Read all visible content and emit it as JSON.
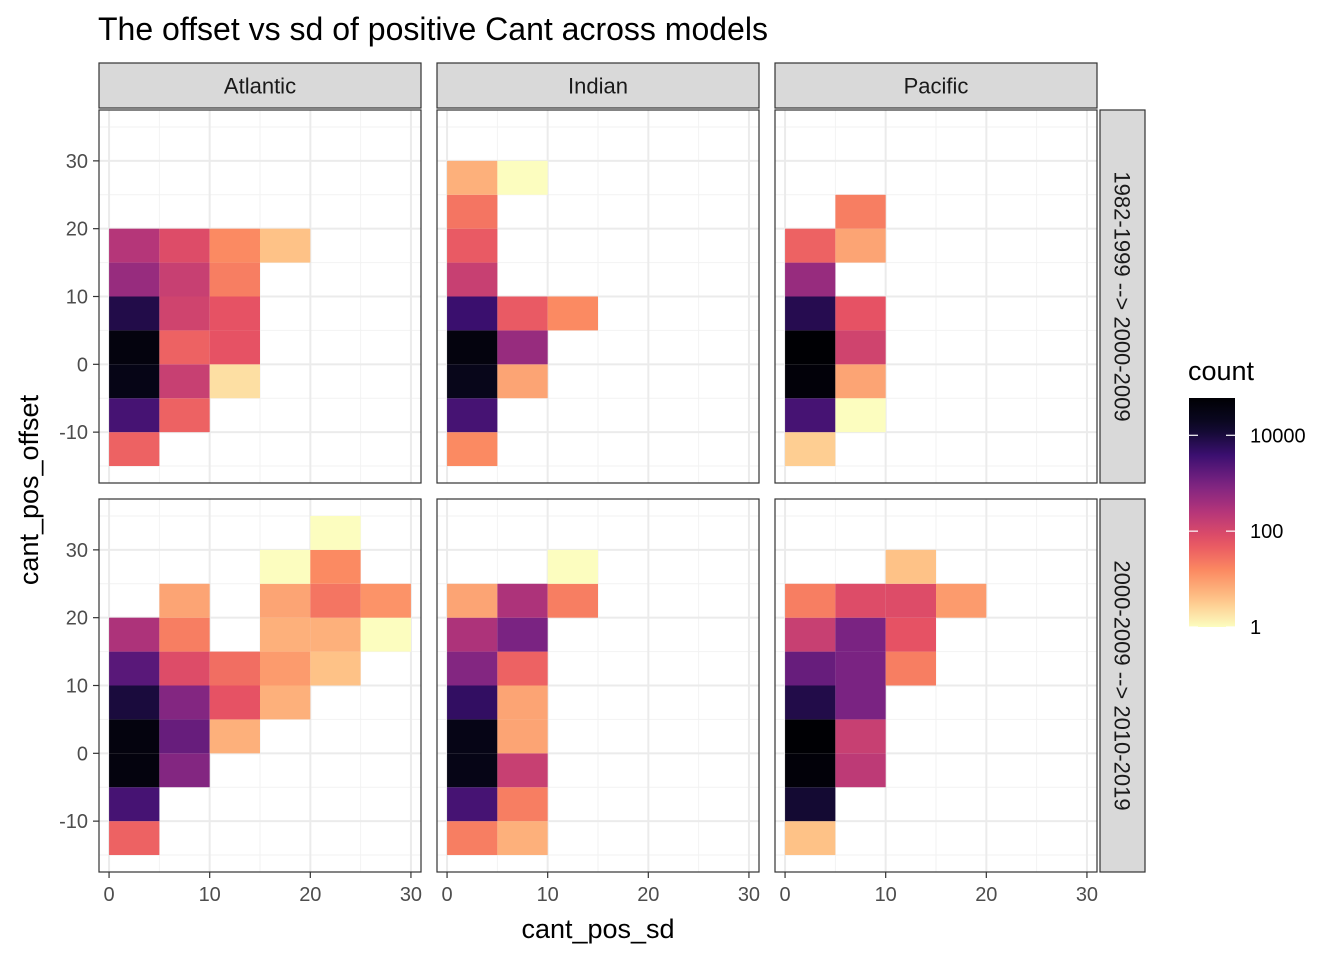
{
  "chart_data": {
    "type": "heatmap",
    "title": "The offset vs sd of positive Cant across models",
    "xlabel": "cant_pos_sd",
    "ylabel": "cant_pos_offset",
    "xlim": [
      -1,
      31
    ],
    "ylim": [
      -17.5,
      37.5
    ],
    "x_ticks": [
      0,
      10,
      20,
      30
    ],
    "y_ticks": [
      -10,
      0,
      10,
      20,
      30
    ],
    "columns": [
      "Atlantic",
      "Indian",
      "Pacific"
    ],
    "rows": [
      "1982-1999 --> 2000-2009",
      "2000-2009 --> 2010-2019"
    ],
    "bin_width": 5,
    "color_scale": {
      "name": "count",
      "transform": "log10",
      "palette": "magma (reversed)",
      "range": [
        1,
        60000
      ],
      "breaks": [
        1,
        100,
        10000
      ],
      "break_labels": [
        "1",
        "100",
        "10000"
      ],
      "colors_low_to_high": [
        "#fcfdbf",
        "#fec287",
        "#fb8861",
        "#e65164",
        "#b63679",
        "#7b2382",
        "#3b0f70",
        "#0c0927",
        "#000004"
      ]
    },
    "panels": [
      {
        "column": "Atlantic",
        "row": "1982-1999 --> 2000-2009",
        "cells": [
          {
            "x": 2.5,
            "y": -12.5,
            "count": 40
          },
          {
            "x": 2.5,
            "y": -7.5,
            "count": 3000
          },
          {
            "x": 2.5,
            "y": -2.5,
            "count": 30000
          },
          {
            "x": 2.5,
            "y": 2.5,
            "count": 40000
          },
          {
            "x": 2.5,
            "y": 7.5,
            "count": 8000
          },
          {
            "x": 2.5,
            "y": 12.5,
            "count": 500
          },
          {
            "x": 2.5,
            "y": 17.5,
            "count": 250
          },
          {
            "x": 7.5,
            "y": -7.5,
            "count": 40
          },
          {
            "x": 7.5,
            "y": -2.5,
            "count": 150
          },
          {
            "x": 7.5,
            "y": 2.5,
            "count": 40
          },
          {
            "x": 7.5,
            "y": 7.5,
            "count": 120
          },
          {
            "x": 7.5,
            "y": 12.5,
            "count": 150
          },
          {
            "x": 7.5,
            "y": 17.5,
            "count": 80
          },
          {
            "x": 12.5,
            "y": -2.5,
            "count": 2
          },
          {
            "x": 12.5,
            "y": 2.5,
            "count": 60
          },
          {
            "x": 12.5,
            "y": 7.5,
            "count": 60
          },
          {
            "x": 12.5,
            "y": 12.5,
            "count": 20
          },
          {
            "x": 12.5,
            "y": 17.5,
            "count": 15
          },
          {
            "x": 17.5,
            "y": 17.5,
            "count": 4
          }
        ]
      },
      {
        "column": "Indian",
        "row": "1982-1999 --> 2000-2009",
        "cells": [
          {
            "x": 2.5,
            "y": -12.5,
            "count": 15
          },
          {
            "x": 2.5,
            "y": -7.5,
            "count": 3000
          },
          {
            "x": 2.5,
            "y": -2.5,
            "count": 25000
          },
          {
            "x": 2.5,
            "y": 2.5,
            "count": 40000
          },
          {
            "x": 2.5,
            "y": 7.5,
            "count": 4000
          },
          {
            "x": 2.5,
            "y": 12.5,
            "count": 150
          },
          {
            "x": 2.5,
            "y": 17.5,
            "count": 50
          },
          {
            "x": 2.5,
            "y": 22.5,
            "count": 25
          },
          {
            "x": 2.5,
            "y": 27.5,
            "count": 6
          },
          {
            "x": 7.5,
            "y": -2.5,
            "count": 8
          },
          {
            "x": 7.5,
            "y": 2.5,
            "count": 500
          },
          {
            "x": 7.5,
            "y": 7.5,
            "count": 50
          },
          {
            "x": 7.5,
            "y": 27.5,
            "count": 1
          },
          {
            "x": 12.5,
            "y": 7.5,
            "count": 15
          }
        ]
      },
      {
        "column": "Pacific",
        "row": "1982-1999 --> 2000-2009",
        "cells": [
          {
            "x": 2.5,
            "y": -12.5,
            "count": 3
          },
          {
            "x": 2.5,
            "y": -7.5,
            "count": 3000
          },
          {
            "x": 2.5,
            "y": -2.5,
            "count": 50000
          },
          {
            "x": 2.5,
            "y": 2.5,
            "count": 60000
          },
          {
            "x": 2.5,
            "y": 7.5,
            "count": 7000
          },
          {
            "x": 2.5,
            "y": 12.5,
            "count": 500
          },
          {
            "x": 2.5,
            "y": 17.5,
            "count": 40
          },
          {
            "x": 7.5,
            "y": -7.5,
            "count": 1
          },
          {
            "x": 7.5,
            "y": -2.5,
            "count": 8
          },
          {
            "x": 7.5,
            "y": 2.5,
            "count": 120
          },
          {
            "x": 7.5,
            "y": 7.5,
            "count": 60
          },
          {
            "x": 7.5,
            "y": 17.5,
            "count": 8
          },
          {
            "x": 7.5,
            "y": 22.5,
            "count": 20
          }
        ]
      },
      {
        "column": "Atlantic",
        "row": "2000-2009 --> 2010-2019",
        "cells": [
          {
            "x": 2.5,
            "y": -12.5,
            "count": 40
          },
          {
            "x": 2.5,
            "y": -7.5,
            "count": 3000
          },
          {
            "x": 2.5,
            "y": -2.5,
            "count": 40000
          },
          {
            "x": 2.5,
            "y": 2.5,
            "count": 40000
          },
          {
            "x": 2.5,
            "y": 7.5,
            "count": 10000
          },
          {
            "x": 2.5,
            "y": 12.5,
            "count": 2000
          },
          {
            "x": 2.5,
            "y": 17.5,
            "count": 300
          },
          {
            "x": 7.5,
            "y": -2.5,
            "count": 800
          },
          {
            "x": 7.5,
            "y": 2.5,
            "count": 1500
          },
          {
            "x": 7.5,
            "y": 7.5,
            "count": 800
          },
          {
            "x": 7.5,
            "y": 12.5,
            "count": 80
          },
          {
            "x": 7.5,
            "y": 17.5,
            "count": 20
          },
          {
            "x": 7.5,
            "y": 22.5,
            "count": 8
          },
          {
            "x": 12.5,
            "y": 2.5,
            "count": 6
          },
          {
            "x": 12.5,
            "y": 7.5,
            "count": 60
          },
          {
            "x": 12.5,
            "y": 12.5,
            "count": 30
          },
          {
            "x": 17.5,
            "y": 7.5,
            "count": 6
          },
          {
            "x": 17.5,
            "y": 12.5,
            "count": 10
          },
          {
            "x": 17.5,
            "y": 17.5,
            "count": 6
          },
          {
            "x": 17.5,
            "y": 22.5,
            "count": 8
          },
          {
            "x": 17.5,
            "y": 27.5,
            "count": 1
          },
          {
            "x": 22.5,
            "y": 12.5,
            "count": 4
          },
          {
            "x": 22.5,
            "y": 17.5,
            "count": 6
          },
          {
            "x": 22.5,
            "y": 22.5,
            "count": 25
          },
          {
            "x": 22.5,
            "y": 27.5,
            "count": 15
          },
          {
            "x": 22.5,
            "y": 32.5,
            "count": 1
          },
          {
            "x": 27.5,
            "y": 17.5,
            "count": 1
          },
          {
            "x": 27.5,
            "y": 22.5,
            "count": 12
          }
        ]
      },
      {
        "column": "Indian",
        "row": "2000-2009 --> 2010-2019",
        "cells": [
          {
            "x": 2.5,
            "y": -12.5,
            "count": 20
          },
          {
            "x": 2.5,
            "y": -7.5,
            "count": 3000
          },
          {
            "x": 2.5,
            "y": -2.5,
            "count": 30000
          },
          {
            "x": 2.5,
            "y": 2.5,
            "count": 30000
          },
          {
            "x": 2.5,
            "y": 7.5,
            "count": 5000
          },
          {
            "x": 2.5,
            "y": 12.5,
            "count": 800
          },
          {
            "x": 2.5,
            "y": 17.5,
            "count": 300
          },
          {
            "x": 2.5,
            "y": 22.5,
            "count": 8
          },
          {
            "x": 7.5,
            "y": -12.5,
            "count": 6
          },
          {
            "x": 7.5,
            "y": -7.5,
            "count": 20
          },
          {
            "x": 7.5,
            "y": -2.5,
            "count": 150
          },
          {
            "x": 7.5,
            "y": 2.5,
            "count": 8
          },
          {
            "x": 7.5,
            "y": 7.5,
            "count": 8
          },
          {
            "x": 7.5,
            "y": 12.5,
            "count": 40
          },
          {
            "x": 7.5,
            "y": 17.5,
            "count": 1000
          },
          {
            "x": 7.5,
            "y": 22.5,
            "count": 300
          },
          {
            "x": 12.5,
            "y": 22.5,
            "count": 20
          },
          {
            "x": 12.5,
            "y": 27.5,
            "count": 1
          }
        ]
      },
      {
        "column": "Pacific",
        "row": "2000-2009 --> 2010-2019",
        "cells": [
          {
            "x": 2.5,
            "y": -12.5,
            "count": 4
          },
          {
            "x": 2.5,
            "y": -7.5,
            "count": 12000
          },
          {
            "x": 2.5,
            "y": -2.5,
            "count": 50000
          },
          {
            "x": 2.5,
            "y": 2.5,
            "count": 60000
          },
          {
            "x": 2.5,
            "y": 7.5,
            "count": 8000
          },
          {
            "x": 2.5,
            "y": 12.5,
            "count": 1500
          },
          {
            "x": 2.5,
            "y": 17.5,
            "count": 150
          },
          {
            "x": 2.5,
            "y": 22.5,
            "count": 20
          },
          {
            "x": 7.5,
            "y": -2.5,
            "count": 200
          },
          {
            "x": 7.5,
            "y": 2.5,
            "count": 150
          },
          {
            "x": 7.5,
            "y": 7.5,
            "count": 1000
          },
          {
            "x": 7.5,
            "y": 12.5,
            "count": 1000
          },
          {
            "x": 7.5,
            "y": 17.5,
            "count": 1000
          },
          {
            "x": 7.5,
            "y": 22.5,
            "count": 80
          },
          {
            "x": 12.5,
            "y": 12.5,
            "count": 20
          },
          {
            "x": 12.5,
            "y": 17.5,
            "count": 60
          },
          {
            "x": 12.5,
            "y": 22.5,
            "count": 80
          },
          {
            "x": 12.5,
            "y": 27.5,
            "count": 4
          },
          {
            "x": 17.5,
            "y": 22.5,
            "count": 10
          }
        ]
      }
    ]
  }
}
